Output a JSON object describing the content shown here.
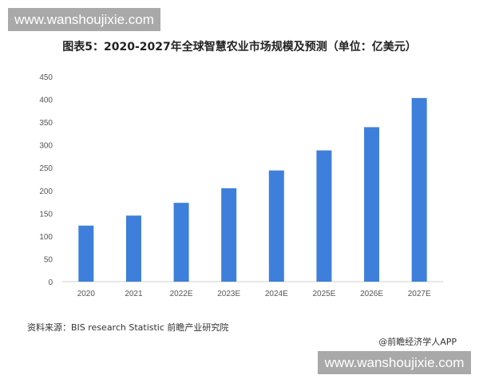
{
  "watermark": {
    "top": "www.wanshoujixie.com",
    "bottom": "www.wanshoujixie.com"
  },
  "colors": {
    "bar": "#3d7fdb",
    "axis": "#d0d0d0"
  },
  "chart_data": {
    "type": "bar",
    "title": "图表5：2020-2027年全球智慧农业市场规模及预测（单位：亿美元）",
    "categories": [
      "2020",
      "2021",
      "2022E",
      "2023E",
      "2024E",
      "2025E",
      "2026E",
      "2027E"
    ],
    "values": [
      123,
      145,
      173,
      205,
      244,
      288,
      339,
      403
    ],
    "xlabel": "",
    "ylabel": "",
    "ylim": [
      0,
      450
    ],
    "yticks": [
      "0",
      "50",
      "100",
      "150",
      "200",
      "250",
      "300",
      "350",
      "400",
      "450"
    ],
    "grid": false,
    "legend": "none"
  },
  "footer": {
    "source": "资料来源：BIS research Statistic 前瞻产业研究院",
    "credit": "@前瞻经济学人APP"
  }
}
